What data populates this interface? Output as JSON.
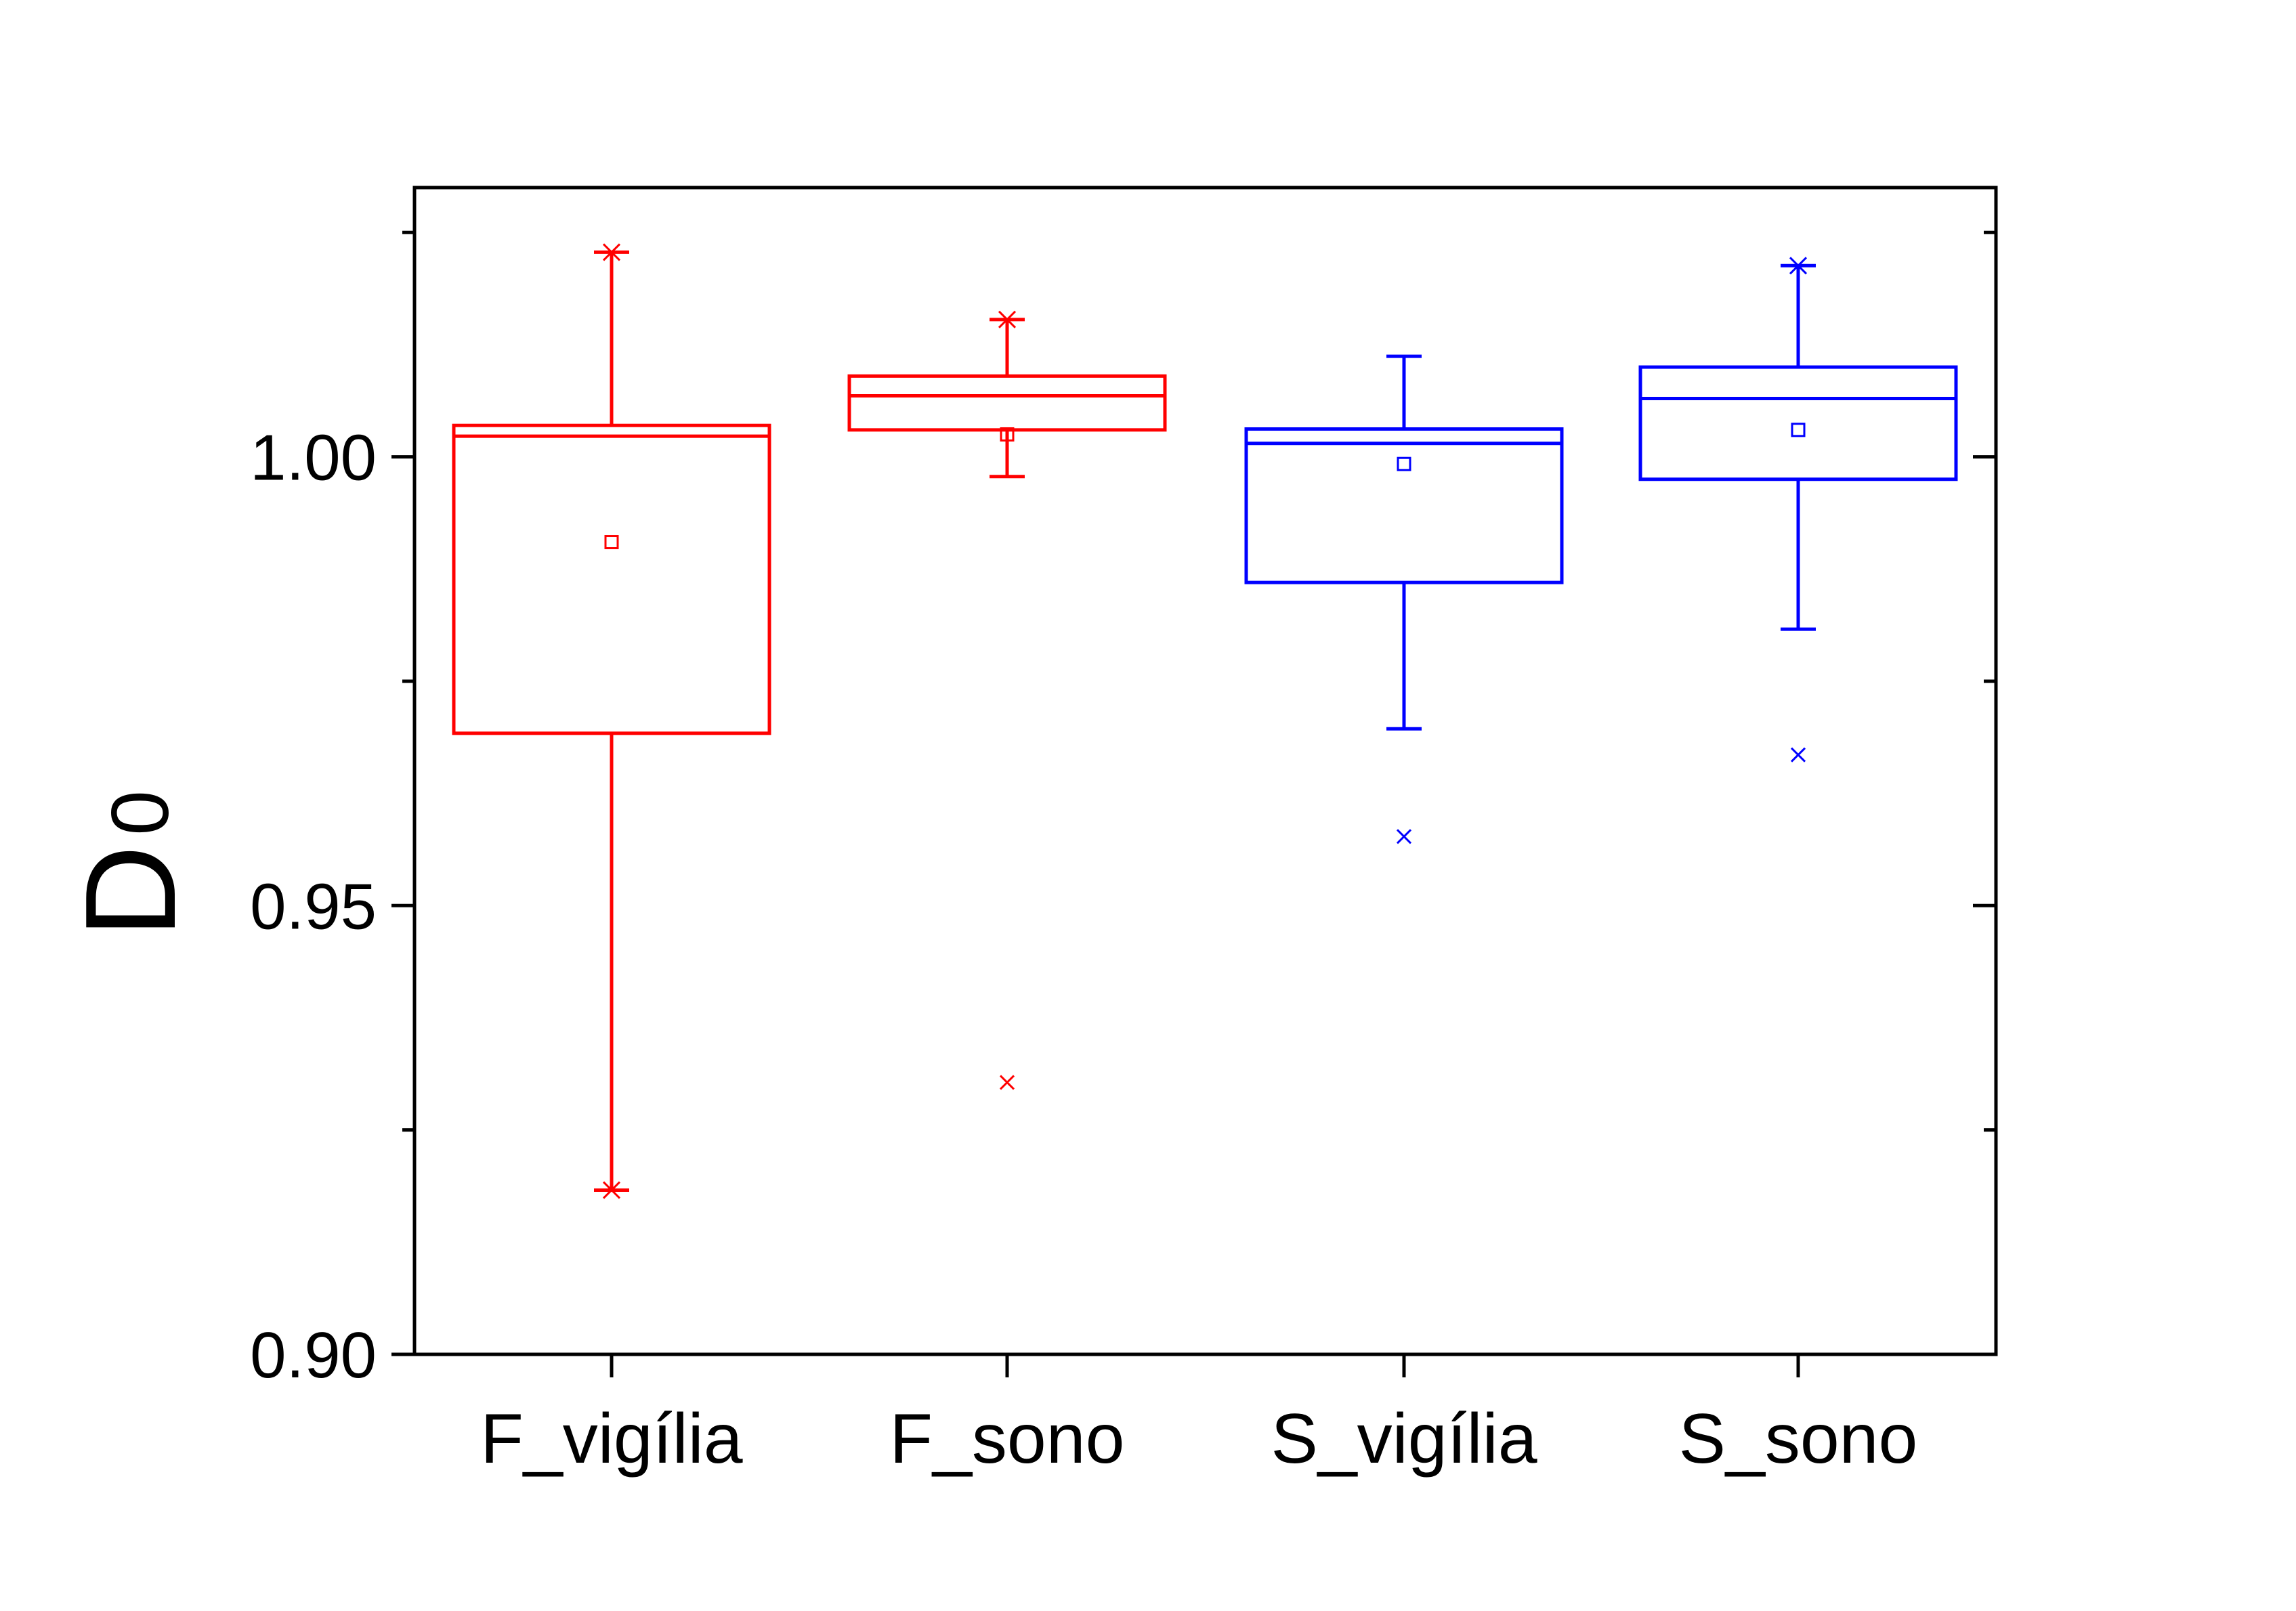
{
  "chart_data": {
    "type": "box",
    "ylabel": "D",
    "ylabel_subscript": "0",
    "xlabel": "",
    "ylim": [
      0.9,
      1.03
    ],
    "yticks_major": [
      0.9,
      0.95,
      1.0
    ],
    "yticks_minor": [
      0.925,
      0.975,
      1.025
    ],
    "ytick_labels": [
      "0.90",
      "0.95",
      "1.00"
    ],
    "categories": [
      "F_vigília",
      "F_sono",
      "S_vigília",
      "S_sono"
    ],
    "grid": false,
    "legend": "none",
    "boxes": [
      {
        "category": "F_vigília",
        "color": "#ff0000",
        "q1": 0.9692,
        "median": 1.0023,
        "q3": 1.0035,
        "mean": 0.9905,
        "whisker_low": 0.9183,
        "whisker_high": 1.0228,
        "extremes": [
          0.9183,
          1.0228
        ],
        "outliers": []
      },
      {
        "category": "F_sono",
        "color": "#ff0000",
        "q1": 1.003,
        "median": 1.0068,
        "q3": 1.009,
        "mean": 1.0025,
        "whisker_low": 0.9978,
        "whisker_high": 1.0153,
        "extremes": [
          1.0153
        ],
        "outliers": [
          0.9303
        ]
      },
      {
        "category": "S_vigília",
        "color": "#0000ff",
        "q1": 0.986,
        "median": 1.0015,
        "q3": 1.0031,
        "mean": 0.9992,
        "whisker_low": 0.9697,
        "whisker_high": 1.0112,
        "extremes": [],
        "outliers": [
          0.9577
        ]
      },
      {
        "category": "S_sono",
        "color": "#0000ff",
        "q1": 0.9975,
        "median": 1.0065,
        "q3": 1.01,
        "mean": 1.003,
        "whisker_low": 0.9808,
        "whisker_high": 1.0213,
        "extremes": [
          1.0213
        ],
        "outliers": [
          0.9668
        ]
      }
    ]
  }
}
